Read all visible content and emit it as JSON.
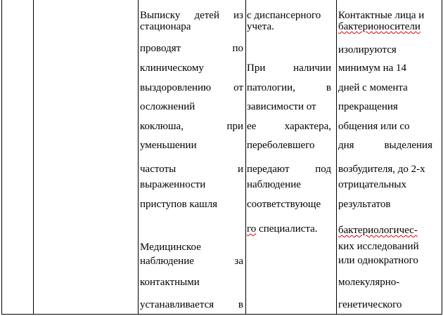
{
  "table": {
    "columns": [
      {
        "lines": [
          {
            "text": "Выписку детей из",
            "justify": true
          },
          {
            "text": "стационара"
          },
          {
            "text": "проводят по",
            "justify": true
          },
          {
            "text": "клиническому"
          },
          {
            "text": "выздоровлению от",
            "justify": true
          },
          {
            "text": "осложнений"
          },
          {
            "text": "коклюша, при",
            "justify": true
          },
          {
            "text": "уменьшении"
          },
          {
            "text": "частоты и",
            "justify": true
          },
          {
            "text": "выраженности"
          },
          {
            "text": "приступов кашля"
          },
          {
            "text": "Медицинское"
          },
          {
            "text": "наблюдение за",
            "justify": true
          },
          {
            "text": "контактными"
          },
          {
            "text": "устанавливается в",
            "justify": true
          }
        ]
      },
      {
        "lines": [
          {
            "text": "с диспансерного"
          },
          {
            "text": "учета."
          },
          {
            "text": "При наличии",
            "justify": true
          },
          {
            "text": "патологии, в",
            "justify": true
          },
          {
            "text": "зависимости от"
          },
          {
            "text": "ее характера,",
            "justify": true
          },
          {
            "text": "переболевшего"
          },
          {
            "text": "передают под",
            "justify": true
          },
          {
            "text": "наблюдение"
          },
          {
            "text": "соответствующе"
          },
          {
            "text": "го специалиста.",
            "spell_word": "го"
          }
        ]
      },
      {
        "lines": [
          {
            "text": "Контактные лица и"
          },
          {
            "text": "бактерионосители",
            "spell_word": "бактерионосители"
          },
          {
            "text": "изолируются"
          },
          {
            "text": "минимум на 14"
          },
          {
            "text": "дней с момента"
          },
          {
            "text": "прекращения"
          },
          {
            "text": "общения или со"
          },
          {
            "text": "дня выделения",
            "justify": true
          },
          {
            "text": "возбудителя, до 2-х"
          },
          {
            "text": "отрицательных"
          },
          {
            "text": "результатов"
          },
          {
            "text": "бактериологичес-",
            "spell_word": "бактериологичес-"
          },
          {
            "text": "ких исследований"
          },
          {
            "text": "или однократного"
          },
          {
            "text": "молекулярно-"
          },
          {
            "text": "генетического"
          }
        ]
      }
    ]
  }
}
